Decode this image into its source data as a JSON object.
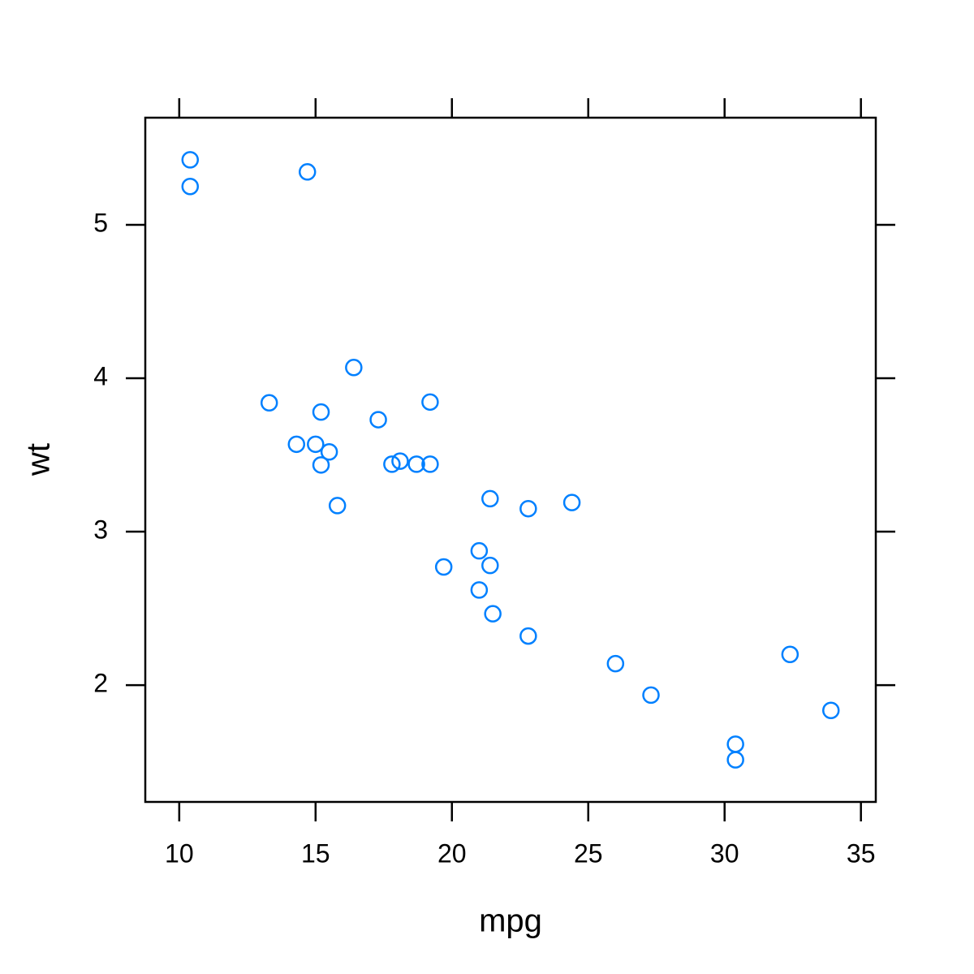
{
  "chart_data": {
    "type": "scatter",
    "x_label": "mpg",
    "y_label": "wt",
    "color": "#0080ff",
    "x": [
      21.0,
      21.0,
      22.8,
      21.4,
      18.7,
      18.1,
      14.3,
      24.4,
      22.8,
      19.2,
      17.8,
      16.4,
      17.3,
      15.2,
      10.4,
      10.4,
      14.7,
      32.4,
      30.4,
      33.9,
      21.5,
      15.5,
      15.2,
      13.3,
      19.2,
      27.3,
      26.0,
      30.4,
      15.8,
      19.7,
      15.0,
      21.4
    ],
    "values": [
      2.62,
      2.875,
      2.32,
      3.215,
      3.44,
      3.46,
      3.57,
      3.19,
      3.15,
      3.44,
      3.44,
      4.07,
      3.73,
      3.78,
      5.25,
      5.424,
      5.345,
      2.2,
      1.615,
      1.835,
      2.465,
      3.52,
      3.435,
      3.84,
      3.845,
      1.935,
      2.14,
      1.513,
      3.17,
      2.77,
      3.57,
      2.78
    ],
    "xlim": [
      8.755,
      35.545
    ],
    "ylim": [
      1.23855,
      5.69845
    ],
    "xticks": [
      10,
      15,
      20,
      25,
      30,
      35
    ],
    "yticks": [
      2,
      3,
      4,
      5
    ]
  }
}
